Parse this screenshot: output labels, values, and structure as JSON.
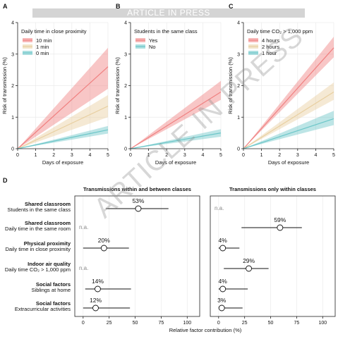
{
  "banner": "ARTICLE IN PRESS",
  "watermark": "ARTICLE IN PRESS",
  "colors": {
    "red": "#f08080",
    "tan": "#e8cfa0",
    "teal": "#6cc6c8",
    "axis": "#222222",
    "grid": "#ebebeb"
  },
  "chart_data": [
    {
      "panel": "A",
      "type": "line",
      "xlabel": "Days of exposure",
      "ylabel": "Risk of transmission (%)",
      "xlim": [
        0,
        5
      ],
      "ylim": [
        0,
        4
      ],
      "xticks": [
        0,
        1,
        2,
        3,
        4,
        5
      ],
      "yticks": [
        0,
        1,
        2,
        3,
        4
      ],
      "grid": true,
      "legend_title": "Daily time in close proximity",
      "legend_position": "top-left",
      "series": [
        {
          "name": "10 min",
          "color": "#f08080",
          "x": [
            0,
            5
          ],
          "y": [
            0,
            2.6
          ],
          "lower": [
            0,
            1.9
          ],
          "upper": [
            0,
            3.2
          ]
        },
        {
          "name": "1 min",
          "color": "#e8cfa0",
          "x": [
            0,
            5
          ],
          "y": [
            0,
            1.35
          ],
          "lower": [
            0,
            1.0
          ],
          "upper": [
            0,
            1.7
          ]
        },
        {
          "name": "0 min",
          "color": "#6cc6c8",
          "x": [
            0,
            5
          ],
          "y": [
            0,
            0.6
          ],
          "lower": [
            0,
            0.48
          ],
          "upper": [
            0,
            0.72
          ]
        }
      ]
    },
    {
      "panel": "B",
      "type": "line",
      "xlabel": "Days of exposure",
      "ylabel": "Risk of transmission (%)",
      "xlim": [
        0,
        5
      ],
      "ylim": [
        0,
        4
      ],
      "xticks": [
        0,
        1,
        2,
        3,
        4,
        5
      ],
      "yticks": [
        0,
        1,
        2,
        3,
        4
      ],
      "grid": true,
      "legend_title": "Students in the same class",
      "legend_position": "top-left",
      "series": [
        {
          "name": "Yes",
          "color": "#f08080",
          "x": [
            0,
            5
          ],
          "y": [
            0,
            1.8
          ],
          "lower": [
            0,
            1.55
          ],
          "upper": [
            0,
            2.15
          ]
        },
        {
          "name": "No",
          "color": "#6cc6c8",
          "x": [
            0,
            5
          ],
          "y": [
            0,
            0.5
          ],
          "lower": [
            0,
            0.38
          ],
          "upper": [
            0,
            0.62
          ]
        }
      ]
    },
    {
      "panel": "C",
      "type": "line",
      "xlabel": "Days of exposure",
      "ylabel": "Risk of transmission (%)",
      "xlim": [
        0,
        5
      ],
      "ylim": [
        0,
        4
      ],
      "xticks": [
        0,
        1,
        2,
        3,
        4,
        5
      ],
      "yticks": [
        0,
        1,
        2,
        3,
        4
      ],
      "grid": true,
      "legend_title": "Daily time CO₂ > 1,000  ppm",
      "legend_position": "top-left",
      "series": [
        {
          "name": "4 hours",
          "color": "#f08080",
          "x": [
            0,
            5
          ],
          "y": [
            0,
            3.2
          ],
          "lower": [
            0,
            2.9
          ],
          "upper": [
            0,
            3.55
          ]
        },
        {
          "name": "2 hours",
          "color": "#e8cfa0",
          "x": [
            0,
            5
          ],
          "y": [
            0,
            1.8
          ],
          "lower": [
            0,
            1.55
          ],
          "upper": [
            0,
            2.1
          ]
        },
        {
          "name": "1 hour",
          "color": "#6cc6c8",
          "x": [
            0,
            5
          ],
          "y": [
            0,
            0.95
          ],
          "lower": [
            0,
            0.75
          ],
          "upper": [
            0,
            1.2
          ]
        }
      ]
    },
    {
      "panel": "D",
      "type": "scatter",
      "xlabel": "Relative factor contribution (%)",
      "xlim": [
        -8,
        112
      ],
      "xticks": [
        0,
        25,
        50,
        75,
        100
      ],
      "categories": [
        {
          "group": "Shared classroom",
          "label": "Students  in the same class"
        },
        {
          "group": "Shared classroom",
          "label": "Daily time in the same room"
        },
        {
          "group": "Physical  proximity",
          "label": "Daily time in close proximity"
        },
        {
          "group": "Indoor air quality",
          "label": "Daily time CO₂ > 1,000  ppm"
        },
        {
          "group": "Social  factors",
          "label": "Siblings at home"
        },
        {
          "group": "Social  factors",
          "label": "Extracurricular  activities"
        }
      ],
      "facets": [
        {
          "title": "Transmissions within and between classes",
          "points": [
            {
              "value": 53,
              "low": 22,
              "high": 82,
              "label": "53%"
            },
            {
              "value": null,
              "label": "n.a."
            },
            {
              "value": 20,
              "low": 0,
              "high": 44,
              "label": "20%"
            },
            {
              "value": null,
              "label": "n.a."
            },
            {
              "value": 14,
              "low": 2,
              "high": 46,
              "label": "14%"
            },
            {
              "value": 12,
              "low": 0,
              "high": 45,
              "label": "12%"
            }
          ]
        },
        {
          "title": "Transmissions only within classes",
          "points": [
            {
              "value": null,
              "label": "n.a."
            },
            {
              "value": 59,
              "low": 22,
              "high": 80,
              "label": "59%"
            },
            {
              "value": 4,
              "low": 0,
              "high": 20,
              "label": "4%"
            },
            {
              "value": 29,
              "low": 5,
              "high": 48,
              "label": "29%"
            },
            {
              "value": 4,
              "low": 0,
              "high": 28,
              "label": "4%"
            },
            {
              "value": 3,
              "low": 0,
              "high": 23,
              "label": "3%"
            }
          ]
        }
      ]
    }
  ]
}
